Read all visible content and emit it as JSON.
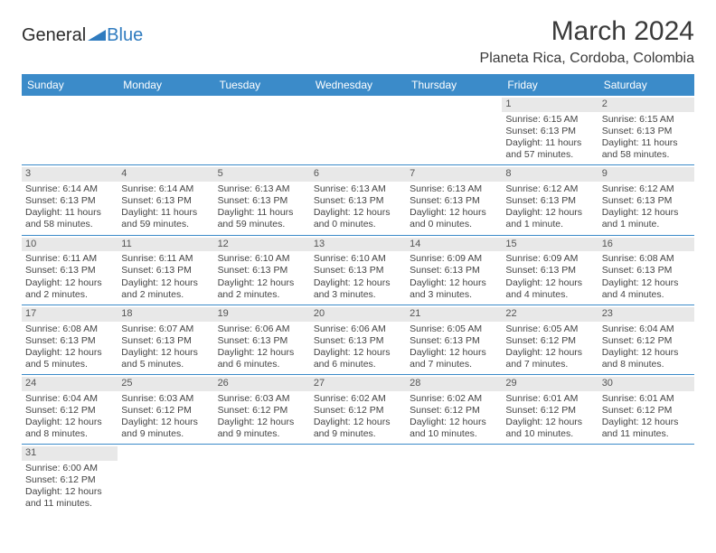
{
  "logo": {
    "part1": "General",
    "part2": "Blue"
  },
  "title": "March 2024",
  "location": "Planeta Rica, Cordoba, Colombia",
  "colors": {
    "header_bg": "#3b8bc9",
    "header_text": "#ffffff",
    "border": "#3b8bc9",
    "daynum_bg": "#e8e8e8",
    "text": "#444444",
    "logo_blue": "#2f7bbf"
  },
  "day_names": [
    "Sunday",
    "Monday",
    "Tuesday",
    "Wednesday",
    "Thursday",
    "Friday",
    "Saturday"
  ],
  "weeks": [
    [
      null,
      null,
      null,
      null,
      null,
      {
        "n": "1",
        "sr": "Sunrise: 6:15 AM",
        "ss": "Sunset: 6:13 PM",
        "d1": "Daylight: 11 hours",
        "d2": "and 57 minutes."
      },
      {
        "n": "2",
        "sr": "Sunrise: 6:15 AM",
        "ss": "Sunset: 6:13 PM",
        "d1": "Daylight: 11 hours",
        "d2": "and 58 minutes."
      }
    ],
    [
      {
        "n": "3",
        "sr": "Sunrise: 6:14 AM",
        "ss": "Sunset: 6:13 PM",
        "d1": "Daylight: 11 hours",
        "d2": "and 58 minutes."
      },
      {
        "n": "4",
        "sr": "Sunrise: 6:14 AM",
        "ss": "Sunset: 6:13 PM",
        "d1": "Daylight: 11 hours",
        "d2": "and 59 minutes."
      },
      {
        "n": "5",
        "sr": "Sunrise: 6:13 AM",
        "ss": "Sunset: 6:13 PM",
        "d1": "Daylight: 11 hours",
        "d2": "and 59 minutes."
      },
      {
        "n": "6",
        "sr": "Sunrise: 6:13 AM",
        "ss": "Sunset: 6:13 PM",
        "d1": "Daylight: 12 hours",
        "d2": "and 0 minutes."
      },
      {
        "n": "7",
        "sr": "Sunrise: 6:13 AM",
        "ss": "Sunset: 6:13 PM",
        "d1": "Daylight: 12 hours",
        "d2": "and 0 minutes."
      },
      {
        "n": "8",
        "sr": "Sunrise: 6:12 AM",
        "ss": "Sunset: 6:13 PM",
        "d1": "Daylight: 12 hours",
        "d2": "and 1 minute."
      },
      {
        "n": "9",
        "sr": "Sunrise: 6:12 AM",
        "ss": "Sunset: 6:13 PM",
        "d1": "Daylight: 12 hours",
        "d2": "and 1 minute."
      }
    ],
    [
      {
        "n": "10",
        "sr": "Sunrise: 6:11 AM",
        "ss": "Sunset: 6:13 PM",
        "d1": "Daylight: 12 hours",
        "d2": "and 2 minutes."
      },
      {
        "n": "11",
        "sr": "Sunrise: 6:11 AM",
        "ss": "Sunset: 6:13 PM",
        "d1": "Daylight: 12 hours",
        "d2": "and 2 minutes."
      },
      {
        "n": "12",
        "sr": "Sunrise: 6:10 AM",
        "ss": "Sunset: 6:13 PM",
        "d1": "Daylight: 12 hours",
        "d2": "and 2 minutes."
      },
      {
        "n": "13",
        "sr": "Sunrise: 6:10 AM",
        "ss": "Sunset: 6:13 PM",
        "d1": "Daylight: 12 hours",
        "d2": "and 3 minutes."
      },
      {
        "n": "14",
        "sr": "Sunrise: 6:09 AM",
        "ss": "Sunset: 6:13 PM",
        "d1": "Daylight: 12 hours",
        "d2": "and 3 minutes."
      },
      {
        "n": "15",
        "sr": "Sunrise: 6:09 AM",
        "ss": "Sunset: 6:13 PM",
        "d1": "Daylight: 12 hours",
        "d2": "and 4 minutes."
      },
      {
        "n": "16",
        "sr": "Sunrise: 6:08 AM",
        "ss": "Sunset: 6:13 PM",
        "d1": "Daylight: 12 hours",
        "d2": "and 4 minutes."
      }
    ],
    [
      {
        "n": "17",
        "sr": "Sunrise: 6:08 AM",
        "ss": "Sunset: 6:13 PM",
        "d1": "Daylight: 12 hours",
        "d2": "and 5 minutes."
      },
      {
        "n": "18",
        "sr": "Sunrise: 6:07 AM",
        "ss": "Sunset: 6:13 PM",
        "d1": "Daylight: 12 hours",
        "d2": "and 5 minutes."
      },
      {
        "n": "19",
        "sr": "Sunrise: 6:06 AM",
        "ss": "Sunset: 6:13 PM",
        "d1": "Daylight: 12 hours",
        "d2": "and 6 minutes."
      },
      {
        "n": "20",
        "sr": "Sunrise: 6:06 AM",
        "ss": "Sunset: 6:13 PM",
        "d1": "Daylight: 12 hours",
        "d2": "and 6 minutes."
      },
      {
        "n": "21",
        "sr": "Sunrise: 6:05 AM",
        "ss": "Sunset: 6:13 PM",
        "d1": "Daylight: 12 hours",
        "d2": "and 7 minutes."
      },
      {
        "n": "22",
        "sr": "Sunrise: 6:05 AM",
        "ss": "Sunset: 6:12 PM",
        "d1": "Daylight: 12 hours",
        "d2": "and 7 minutes."
      },
      {
        "n": "23",
        "sr": "Sunrise: 6:04 AM",
        "ss": "Sunset: 6:12 PM",
        "d1": "Daylight: 12 hours",
        "d2": "and 8 minutes."
      }
    ],
    [
      {
        "n": "24",
        "sr": "Sunrise: 6:04 AM",
        "ss": "Sunset: 6:12 PM",
        "d1": "Daylight: 12 hours",
        "d2": "and 8 minutes."
      },
      {
        "n": "25",
        "sr": "Sunrise: 6:03 AM",
        "ss": "Sunset: 6:12 PM",
        "d1": "Daylight: 12 hours",
        "d2": "and 9 minutes."
      },
      {
        "n": "26",
        "sr": "Sunrise: 6:03 AM",
        "ss": "Sunset: 6:12 PM",
        "d1": "Daylight: 12 hours",
        "d2": "and 9 minutes."
      },
      {
        "n": "27",
        "sr": "Sunrise: 6:02 AM",
        "ss": "Sunset: 6:12 PM",
        "d1": "Daylight: 12 hours",
        "d2": "and 9 minutes."
      },
      {
        "n": "28",
        "sr": "Sunrise: 6:02 AM",
        "ss": "Sunset: 6:12 PM",
        "d1": "Daylight: 12 hours",
        "d2": "and 10 minutes."
      },
      {
        "n": "29",
        "sr": "Sunrise: 6:01 AM",
        "ss": "Sunset: 6:12 PM",
        "d1": "Daylight: 12 hours",
        "d2": "and 10 minutes."
      },
      {
        "n": "30",
        "sr": "Sunrise: 6:01 AM",
        "ss": "Sunset: 6:12 PM",
        "d1": "Daylight: 12 hours",
        "d2": "and 11 minutes."
      }
    ],
    [
      {
        "n": "31",
        "sr": "Sunrise: 6:00 AM",
        "ss": "Sunset: 6:12 PM",
        "d1": "Daylight: 12 hours",
        "d2": "and 11 minutes."
      },
      null,
      null,
      null,
      null,
      null,
      null
    ]
  ]
}
